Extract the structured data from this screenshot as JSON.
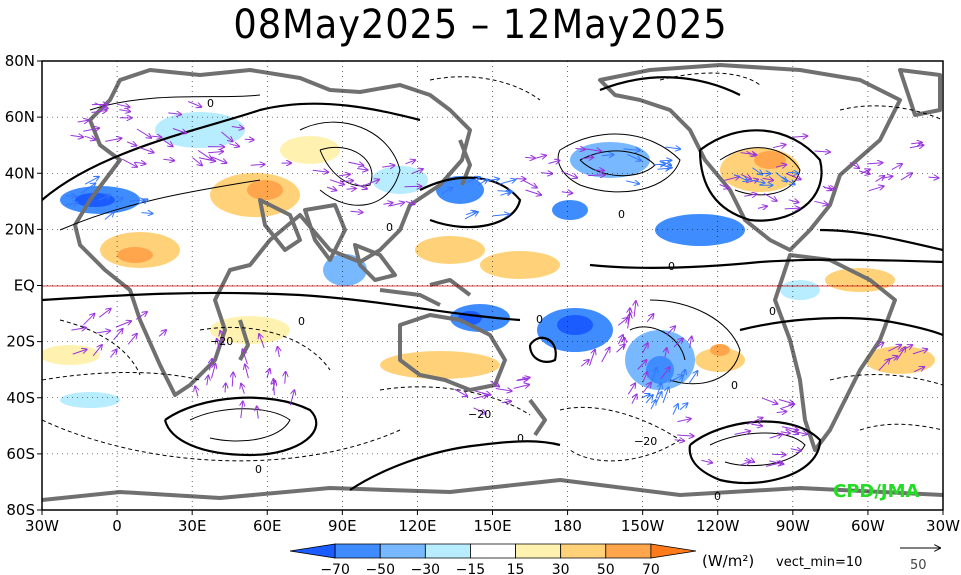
{
  "title": "08May2025 – 12May2025",
  "lat_labels": [
    "80N",
    "60N",
    "40N",
    "20N",
    "EQ",
    "20S",
    "40S",
    "60S",
    "80S"
  ],
  "lon_labels": [
    "30W",
    "0",
    "30E",
    "60E",
    "90E",
    "120E",
    "150E",
    "180",
    "150W",
    "120W",
    "90W",
    "60W",
    "30W"
  ],
  "colorbar": {
    "labels": [
      "−70",
      "−50",
      "−30",
      "−15",
      "15",
      "30",
      "50",
      "70"
    ],
    "colors": [
      "#1a5cff",
      "#3f8cff",
      "#77b8ff",
      "#b8ecff",
      "#ffffff",
      "#fff2b0",
      "#ffd27a",
      "#ffa64d",
      "#ff7a1a"
    ],
    "unit": "(W/m²)",
    "vect_min": "vect_min=10"
  },
  "reference_vector": {
    "value": "50"
  },
  "credit": "CPD/JMA",
  "contour_labels": [
    "0",
    "0",
    "0",
    "0",
    "0",
    "0",
    "0",
    "0",
    "0",
    "0",
    "0",
    "−20",
    "−20",
    "−20"
  ],
  "colors": {
    "land_outline": "#707070",
    "vector_purple": "#9933dd",
    "vector_blue": "#3377ff",
    "equator": "#cc0000"
  }
}
